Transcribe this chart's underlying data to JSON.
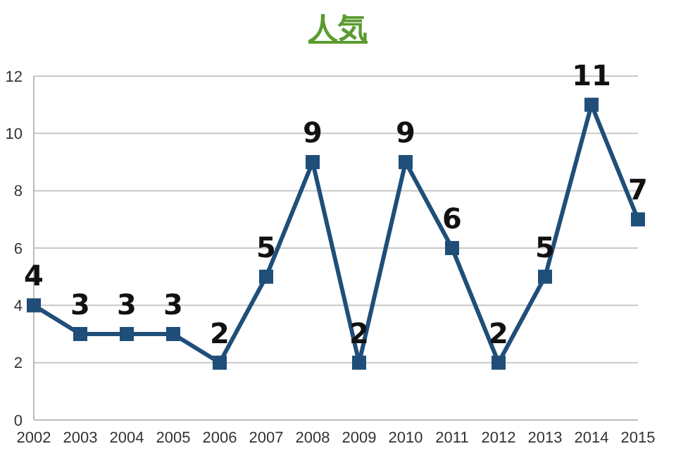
{
  "chart_data": {
    "type": "line",
    "title": "人気",
    "categories": [
      "2002",
      "2003",
      "2004",
      "2005",
      "2006",
      "2007",
      "2008",
      "2009",
      "2010",
      "2011",
      "2012",
      "2013",
      "2014",
      "2015"
    ],
    "series": [
      {
        "color": "#1f4e79",
        "values": [
          4,
          3,
          3,
          3,
          2,
          5,
          9,
          2,
          9,
          6,
          2,
          5,
          11,
          7
        ]
      }
    ],
    "ylim": [
      0,
      12
    ],
    "yticks": [
      0,
      2,
      4,
      6,
      8,
      10,
      12
    ],
    "grid": "y",
    "marker": "square",
    "data_labels": true
  }
}
